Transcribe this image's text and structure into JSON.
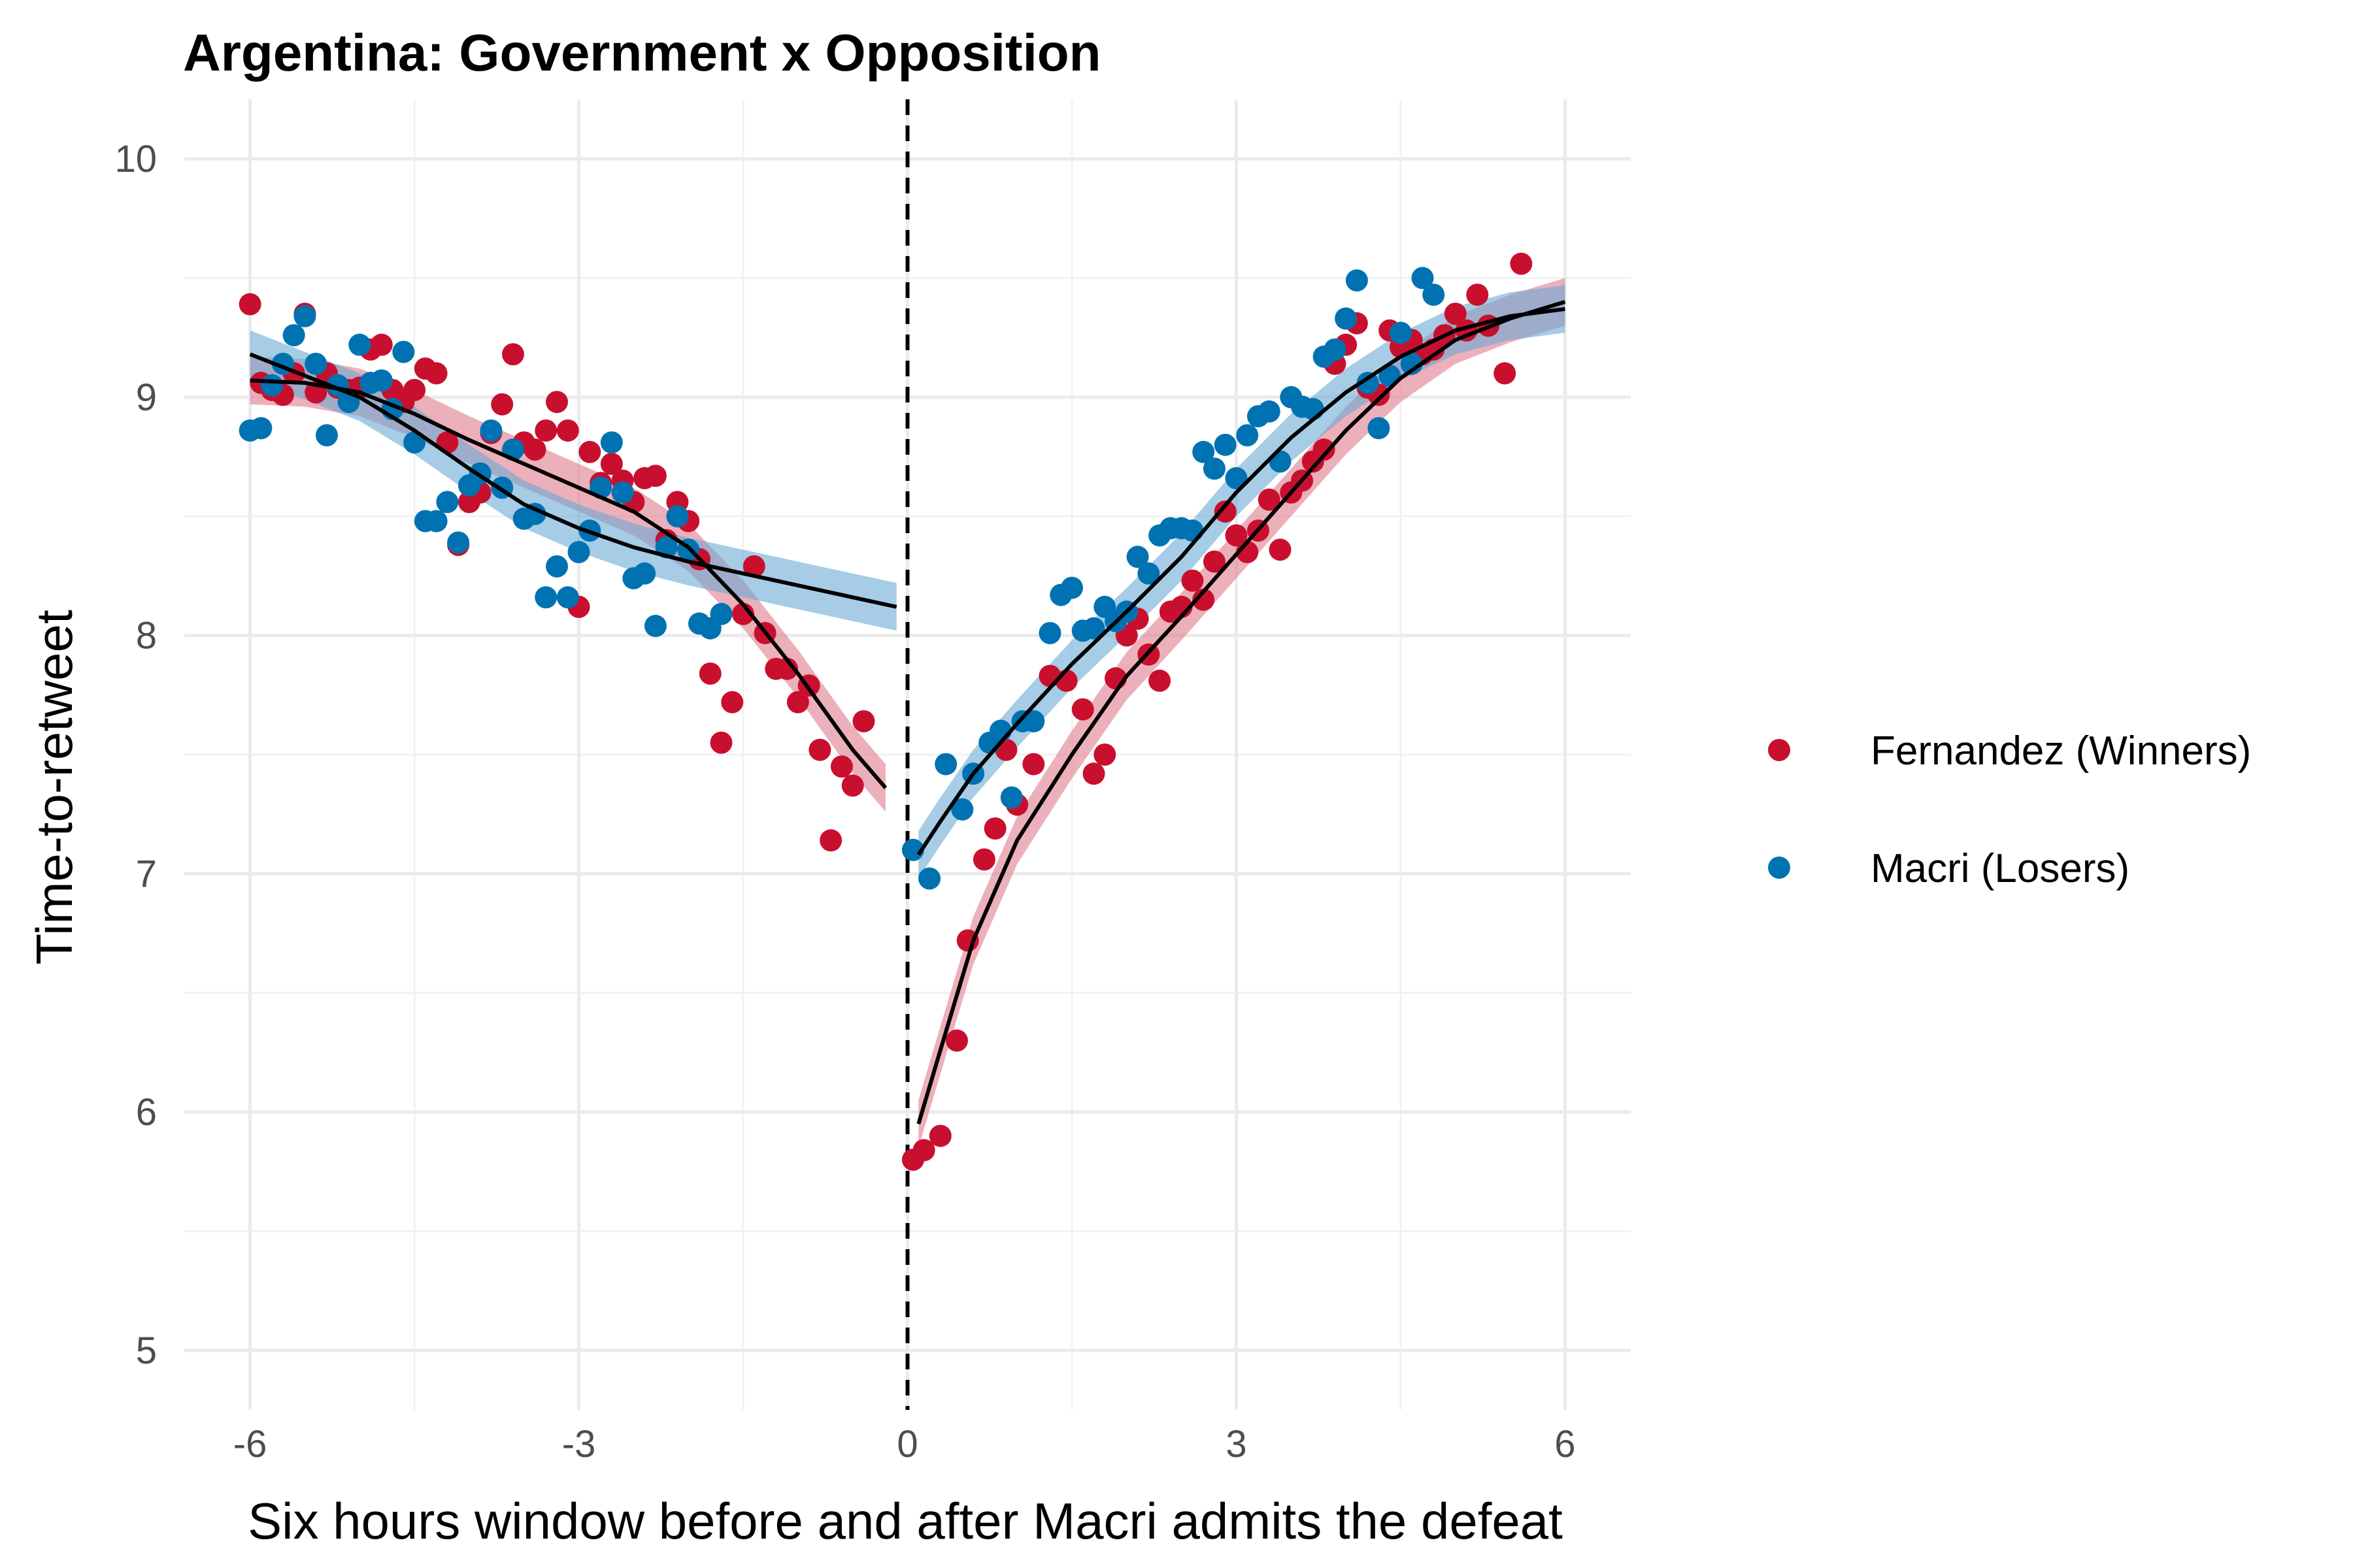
{
  "chart_data": {
    "type": "scatter",
    "title": "Argentina: Government x Opposition",
    "xlabel": "Six hours window before and after Macri admits the defeat",
    "ylabel": "Time-to-retweet",
    "xlim": [
      -6.6,
      6.6
    ],
    "ylim": [
      4.75,
      10.25
    ],
    "x_ticks": [
      -6,
      -3,
      0,
      3,
      6
    ],
    "x_tick_labels": [
      "-6",
      "-3",
      "0",
      "3",
      "6"
    ],
    "y_ticks": [
      5,
      6,
      7,
      8,
      9,
      10
    ],
    "y_tick_labels": [
      "5",
      "6",
      "7",
      "8",
      "9",
      "10"
    ],
    "grid": true,
    "vline_x": 0,
    "legend_position": "right",
    "colors": {
      "Fernandez (Winners)": "#c8102e",
      "Macri (Losers)": "#0072b2",
      "smooth_line": "#000000"
    },
    "series": [
      {
        "name": "Fernandez (Winners)",
        "color": "#c8102e",
        "points": [
          [
            -6.0,
            9.39
          ],
          [
            -5.9,
            9.06
          ],
          [
            -5.8,
            9.03
          ],
          [
            -5.7,
            9.01
          ],
          [
            -5.6,
            9.1
          ],
          [
            -5.5,
            9.35
          ],
          [
            -5.4,
            9.02
          ],
          [
            -5.3,
            9.1
          ],
          [
            -5.2,
            9.04
          ],
          [
            -5.1,
            9.03
          ],
          [
            -5.0,
            9.04
          ],
          [
            -4.9,
            9.2
          ],
          [
            -4.8,
            9.22
          ],
          [
            -4.7,
            9.03
          ],
          [
            -4.6,
            8.98
          ],
          [
            -4.5,
            9.03
          ],
          [
            -4.4,
            9.12
          ],
          [
            -4.3,
            9.1
          ],
          [
            -4.2,
            8.81
          ],
          [
            -4.1,
            8.38
          ],
          [
            -4.0,
            8.56
          ],
          [
            -3.9,
            8.6
          ],
          [
            -3.8,
            8.85
          ],
          [
            -3.7,
            8.97
          ],
          [
            -3.6,
            9.18
          ],
          [
            -3.5,
            8.81
          ],
          [
            -3.4,
            8.78
          ],
          [
            -3.3,
            8.86
          ],
          [
            -3.2,
            8.98
          ],
          [
            -3.1,
            8.86
          ],
          [
            -3.0,
            8.12
          ],
          [
            -2.9,
            8.77
          ],
          [
            -2.8,
            8.64
          ],
          [
            -2.7,
            8.72
          ],
          [
            -2.6,
            8.65
          ],
          [
            -2.5,
            8.56
          ],
          [
            -2.4,
            8.66
          ],
          [
            -2.3,
            8.67
          ],
          [
            -2.2,
            8.4
          ],
          [
            -2.1,
            8.56
          ],
          [
            -2.0,
            8.48
          ],
          [
            -1.9,
            8.32
          ],
          [
            -1.8,
            7.84
          ],
          [
            -1.7,
            7.55
          ],
          [
            -1.6,
            7.72
          ],
          [
            -1.5,
            8.09
          ],
          [
            -1.4,
            8.29
          ],
          [
            -1.3,
            8.01
          ],
          [
            -1.2,
            7.86
          ],
          [
            -1.1,
            7.86
          ],
          [
            -1.0,
            7.72
          ],
          [
            -0.9,
            7.79
          ],
          [
            -0.8,
            7.52
          ],
          [
            -0.7,
            7.14
          ],
          [
            -0.6,
            7.45
          ],
          [
            -0.5,
            7.37
          ],
          [
            -0.4,
            7.64
          ],
          [
            0.05,
            5.8
          ],
          [
            0.15,
            5.84
          ],
          [
            0.3,
            5.9
          ],
          [
            0.45,
            6.3
          ],
          [
            0.55,
            6.72
          ],
          [
            0.7,
            7.06
          ],
          [
            0.8,
            7.19
          ],
          [
            0.9,
            7.52
          ],
          [
            1.0,
            7.29
          ],
          [
            1.15,
            7.46
          ],
          [
            1.3,
            7.83
          ],
          [
            1.45,
            7.81
          ],
          [
            1.6,
            7.69
          ],
          [
            1.7,
            7.42
          ],
          [
            1.8,
            7.5
          ],
          [
            1.9,
            7.82
          ],
          [
            2.0,
            8.0
          ],
          [
            2.1,
            8.07
          ],
          [
            2.2,
            7.92
          ],
          [
            2.3,
            7.81
          ],
          [
            2.4,
            8.1
          ],
          [
            2.5,
            8.12
          ],
          [
            2.6,
            8.23
          ],
          [
            2.7,
            8.15
          ],
          [
            2.8,
            8.31
          ],
          [
            2.9,
            8.52
          ],
          [
            3.0,
            8.42
          ],
          [
            3.1,
            8.35
          ],
          [
            3.2,
            8.44
          ],
          [
            3.3,
            8.57
          ],
          [
            3.4,
            8.36
          ],
          [
            3.5,
            8.6
          ],
          [
            3.6,
            8.65
          ],
          [
            3.7,
            8.73
          ],
          [
            3.8,
            8.78
          ],
          [
            3.9,
            9.14
          ],
          [
            4.0,
            9.22
          ],
          [
            4.1,
            9.31
          ],
          [
            4.2,
            9.04
          ],
          [
            4.3,
            9.01
          ],
          [
            4.4,
            9.28
          ],
          [
            4.5,
            9.21
          ],
          [
            4.6,
            9.24
          ],
          [
            4.7,
            9.18
          ],
          [
            4.8,
            9.2
          ],
          [
            4.9,
            9.26
          ],
          [
            5.0,
            9.35
          ],
          [
            5.1,
            9.28
          ],
          [
            5.2,
            9.43
          ],
          [
            5.3,
            9.3
          ],
          [
            5.45,
            9.1
          ],
          [
            5.6,
            9.56
          ]
        ],
        "smooth": [
          [
            -6.0,
            9.07
          ],
          [
            -5.5,
            9.06
          ],
          [
            -5.0,
            9.02
          ],
          [
            -4.5,
            8.93
          ],
          [
            -4.0,
            8.82
          ],
          [
            -3.5,
            8.72
          ],
          [
            -3.0,
            8.62
          ],
          [
            -2.5,
            8.52
          ],
          [
            -2.0,
            8.37
          ],
          [
            -1.5,
            8.13
          ],
          [
            -1.0,
            7.84
          ],
          [
            -0.5,
            7.52
          ],
          [
            -0.2,
            7.36
          ],
          [
            0.1,
            5.95
          ],
          [
            0.3,
            6.26
          ],
          [
            0.6,
            6.72
          ],
          [
            1.0,
            7.14
          ],
          [
            1.5,
            7.5
          ],
          [
            2.0,
            7.83
          ],
          [
            2.5,
            8.08
          ],
          [
            3.0,
            8.34
          ],
          [
            3.5,
            8.6
          ],
          [
            4.0,
            8.86
          ],
          [
            4.5,
            9.08
          ],
          [
            5.0,
            9.24
          ],
          [
            5.5,
            9.33
          ],
          [
            6.0,
            9.4
          ]
        ]
      },
      {
        "name": "Macri (Losers)",
        "color": "#0072b2",
        "points": [
          [
            -6.0,
            8.86
          ],
          [
            -5.9,
            8.87
          ],
          [
            -5.8,
            9.05
          ],
          [
            -5.7,
            9.14
          ],
          [
            -5.6,
            9.26
          ],
          [
            -5.5,
            9.34
          ],
          [
            -5.4,
            9.14
          ],
          [
            -5.3,
            8.84
          ],
          [
            -5.2,
            9.05
          ],
          [
            -5.1,
            8.98
          ],
          [
            -5.0,
            9.22
          ],
          [
            -4.9,
            9.06
          ],
          [
            -4.8,
            9.07
          ],
          [
            -4.7,
            8.95
          ],
          [
            -4.6,
            9.19
          ],
          [
            -4.5,
            8.81
          ],
          [
            -4.4,
            8.48
          ],
          [
            -4.3,
            8.48
          ],
          [
            -4.2,
            8.56
          ],
          [
            -4.1,
            8.39
          ],
          [
            -4.0,
            8.63
          ],
          [
            -3.9,
            8.68
          ],
          [
            -3.8,
            8.86
          ],
          [
            -3.7,
            8.62
          ],
          [
            -3.6,
            8.78
          ],
          [
            -3.5,
            8.49
          ],
          [
            -3.4,
            8.51
          ],
          [
            -3.3,
            8.16
          ],
          [
            -3.2,
            8.29
          ],
          [
            -3.1,
            8.16
          ],
          [
            -3.0,
            8.35
          ],
          [
            -2.9,
            8.44
          ],
          [
            -2.8,
            8.62
          ],
          [
            -2.7,
            8.81
          ],
          [
            -2.6,
            8.6
          ],
          [
            -2.5,
            8.24
          ],
          [
            -2.4,
            8.26
          ],
          [
            -2.3,
            8.04
          ],
          [
            -2.2,
            8.37
          ],
          [
            -2.1,
            8.5
          ],
          [
            -2.0,
            8.36
          ],
          [
            -1.9,
            8.05
          ],
          [
            -1.8,
            8.03
          ],
          [
            -1.7,
            8.09
          ],
          [
            0.05,
            7.1
          ],
          [
            0.2,
            6.98
          ],
          [
            0.35,
            7.46
          ],
          [
            0.5,
            7.27
          ],
          [
            0.6,
            7.42
          ],
          [
            0.75,
            7.55
          ],
          [
            0.85,
            7.6
          ],
          [
            0.95,
            7.32
          ],
          [
            1.05,
            7.64
          ],
          [
            1.15,
            7.64
          ],
          [
            1.3,
            8.01
          ],
          [
            1.4,
            8.17
          ],
          [
            1.5,
            8.2
          ],
          [
            1.6,
            8.02
          ],
          [
            1.7,
            8.03
          ],
          [
            1.8,
            8.12
          ],
          [
            1.9,
            8.06
          ],
          [
            2.0,
            8.1
          ],
          [
            2.1,
            8.33
          ],
          [
            2.2,
            8.26
          ],
          [
            2.3,
            8.42
          ],
          [
            2.4,
            8.45
          ],
          [
            2.5,
            8.45
          ],
          [
            2.6,
            8.44
          ],
          [
            2.7,
            8.77
          ],
          [
            2.8,
            8.7
          ],
          [
            2.9,
            8.8
          ],
          [
            3.0,
            8.66
          ],
          [
            3.1,
            8.84
          ],
          [
            3.2,
            8.92
          ],
          [
            3.3,
            8.94
          ],
          [
            3.4,
            8.73
          ],
          [
            3.5,
            9.0
          ],
          [
            3.6,
            8.96
          ],
          [
            3.7,
            8.95
          ],
          [
            3.8,
            9.17
          ],
          [
            3.9,
            9.2
          ],
          [
            4.0,
            9.33
          ],
          [
            4.1,
            9.49
          ],
          [
            4.2,
            9.06
          ],
          [
            4.3,
            8.87
          ],
          [
            4.4,
            9.09
          ],
          [
            4.5,
            9.27
          ],
          [
            4.6,
            9.14
          ],
          [
            4.7,
            9.5
          ],
          [
            4.8,
            9.43
          ]
        ],
        "smooth": [
          [
            -6.0,
            9.18
          ],
          [
            -5.5,
            9.09
          ],
          [
            -5.0,
            9.0
          ],
          [
            -4.5,
            8.86
          ],
          [
            -4.0,
            8.7
          ],
          [
            -3.5,
            8.55
          ],
          [
            -3.0,
            8.45
          ],
          [
            -2.5,
            8.37
          ],
          [
            -2.0,
            8.31
          ],
          [
            -1.5,
            8.26
          ],
          [
            -1.0,
            8.21
          ],
          [
            -0.5,
            8.16
          ],
          [
            -0.1,
            8.12
          ],
          [
            0.1,
            7.08
          ],
          [
            0.3,
            7.22
          ],
          [
            0.6,
            7.42
          ],
          [
            1.0,
            7.63
          ],
          [
            1.5,
            7.88
          ],
          [
            2.0,
            8.1
          ],
          [
            2.5,
            8.33
          ],
          [
            3.0,
            8.6
          ],
          [
            3.5,
            8.83
          ],
          [
            4.0,
            9.02
          ],
          [
            4.5,
            9.17
          ],
          [
            5.0,
            9.28
          ],
          [
            5.5,
            9.34
          ],
          [
            6.0,
            9.37
          ]
        ]
      }
    ]
  }
}
